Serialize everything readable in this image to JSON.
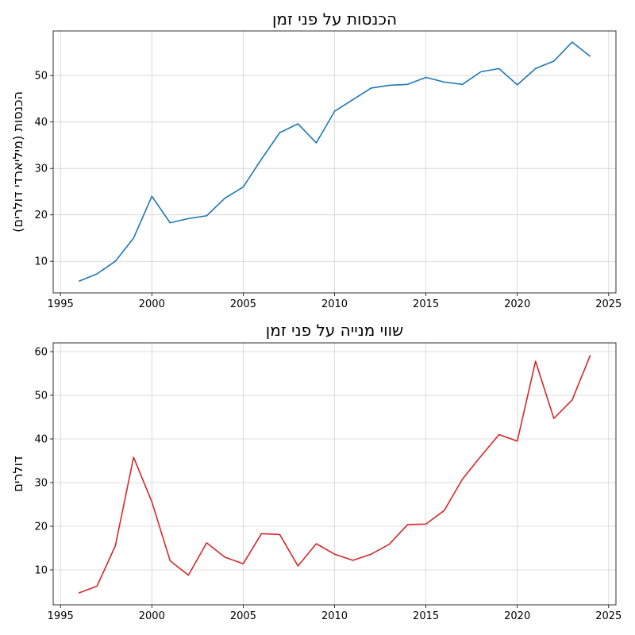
{
  "chart_data": [
    {
      "type": "line",
      "title": "הכנסות על פני זמן",
      "xlabel": "",
      "ylabel": "הכנסות (מיליארדי דולרים)",
      "xlim": [
        1994.6,
        2025.4
      ],
      "ylim": [
        3.2,
        59.6
      ],
      "xticks": [
        1995,
        2000,
        2005,
        2010,
        2015,
        2020,
        2025
      ],
      "yticks": [
        10,
        20,
        30,
        40,
        50
      ],
      "grid": true,
      "color": "#1f77b4",
      "x": [
        1996,
        1997,
        1998,
        1999,
        2000,
        2001,
        2002,
        2003,
        2004,
        2005,
        2006,
        2007,
        2008,
        2009,
        2010,
        2011,
        2012,
        2013,
        2014,
        2015,
        2016,
        2017,
        2018,
        2019,
        2020,
        2021,
        2022,
        2023,
        2024
      ],
      "y": [
        5.7,
        7.3,
        10.0,
        15.0,
        24.0,
        18.3,
        19.2,
        19.8,
        23.6,
        26.0,
        32.0,
        37.7,
        39.6,
        35.5,
        42.3,
        44.8,
        47.3,
        47.9,
        48.1,
        49.6,
        48.6,
        48.1,
        50.8,
        51.5,
        48.0,
        51.5,
        53.1,
        57.2,
        54.1
      ]
    },
    {
      "type": "line",
      "title": "שווי מנייה על פני זמן",
      "xlabel": "",
      "ylabel": "דולרים",
      "xlim": [
        1994.6,
        2025.4
      ],
      "ylim": [
        2.0,
        62.0
      ],
      "xticks": [
        1995,
        2000,
        2005,
        2010,
        2015,
        2020,
        2025
      ],
      "yticks": [
        10,
        20,
        30,
        40,
        50,
        60
      ],
      "grid": true,
      "color": "#d62728",
      "x": [
        1996,
        1997,
        1998,
        1999,
        2000,
        2001,
        2002,
        2003,
        2004,
        2005,
        2006,
        2007,
        2008,
        2009,
        2010,
        2011,
        2012,
        2013,
        2014,
        2015,
        2016,
        2017,
        2018,
        2019,
        2020,
        2021,
        2022,
        2023,
        2024
      ],
      "y": [
        4.7,
        6.3,
        15.5,
        35.8,
        25.6,
        12.1,
        8.8,
        16.2,
        12.9,
        11.4,
        18.3,
        18.1,
        10.9,
        16.0,
        13.6,
        12.2,
        13.6,
        15.9,
        20.4,
        20.5,
        23.6,
        30.8,
        36.0,
        41.0,
        39.5,
        57.8,
        44.7,
        48.9,
        59.2
      ]
    }
  ]
}
